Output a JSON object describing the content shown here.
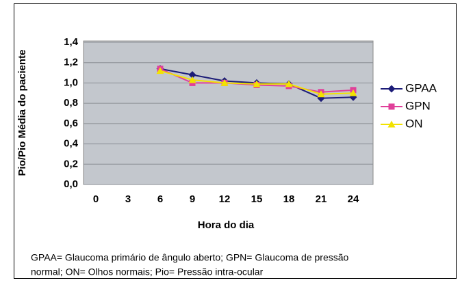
{
  "chart_data": {
    "type": "line",
    "y_label": "Pio/Pio Média do paciente",
    "x_label": "Hora do dia",
    "x": [
      6,
      9,
      12,
      15,
      18,
      21,
      24
    ],
    "xlim": [
      0,
      24
    ],
    "xticks": [
      0,
      3,
      6,
      9,
      12,
      15,
      18,
      21,
      24
    ],
    "ylim": [
      0,
      1.4
    ],
    "yticks": [
      {
        "value": 0,
        "label": "0,0"
      },
      {
        "value": 0.2,
        "label": "0,2"
      },
      {
        "value": 0.4,
        "label": "0,4"
      },
      {
        "value": 0.6,
        "label": "0,6"
      },
      {
        "value": 0.8,
        "label": "0,8"
      },
      {
        "value": 1.0,
        "label": "1,0"
      },
      {
        "value": 1.2,
        "label": "1,2"
      },
      {
        "value": 1.4,
        "label": "1,4"
      }
    ],
    "grid": true,
    "legend": "right",
    "series": [
      {
        "name": "GPAA",
        "color": "#1c1c78",
        "marker": "diamond",
        "values": [
          1.14,
          1.08,
          1.02,
          1.0,
          0.99,
          0.85,
          0.86
        ]
      },
      {
        "name": "GPN",
        "color": "#e0409a",
        "marker": "square",
        "values": [
          1.14,
          1.0,
          1.0,
          0.98,
          0.97,
          0.91,
          0.93
        ]
      },
      {
        "name": "ON",
        "color": "#f2e200",
        "marker": "triangle",
        "values": [
          1.12,
          1.03,
          1.0,
          0.99,
          0.99,
          0.89,
          0.9
        ]
      }
    ],
    "note": [
      "GPAA= Glaucoma primário de ângulo aberto; GPN= Glaucoma de pressão",
      "normal; ON= Olhos normais; Pio= Pressão intra-ocular"
    ]
  }
}
